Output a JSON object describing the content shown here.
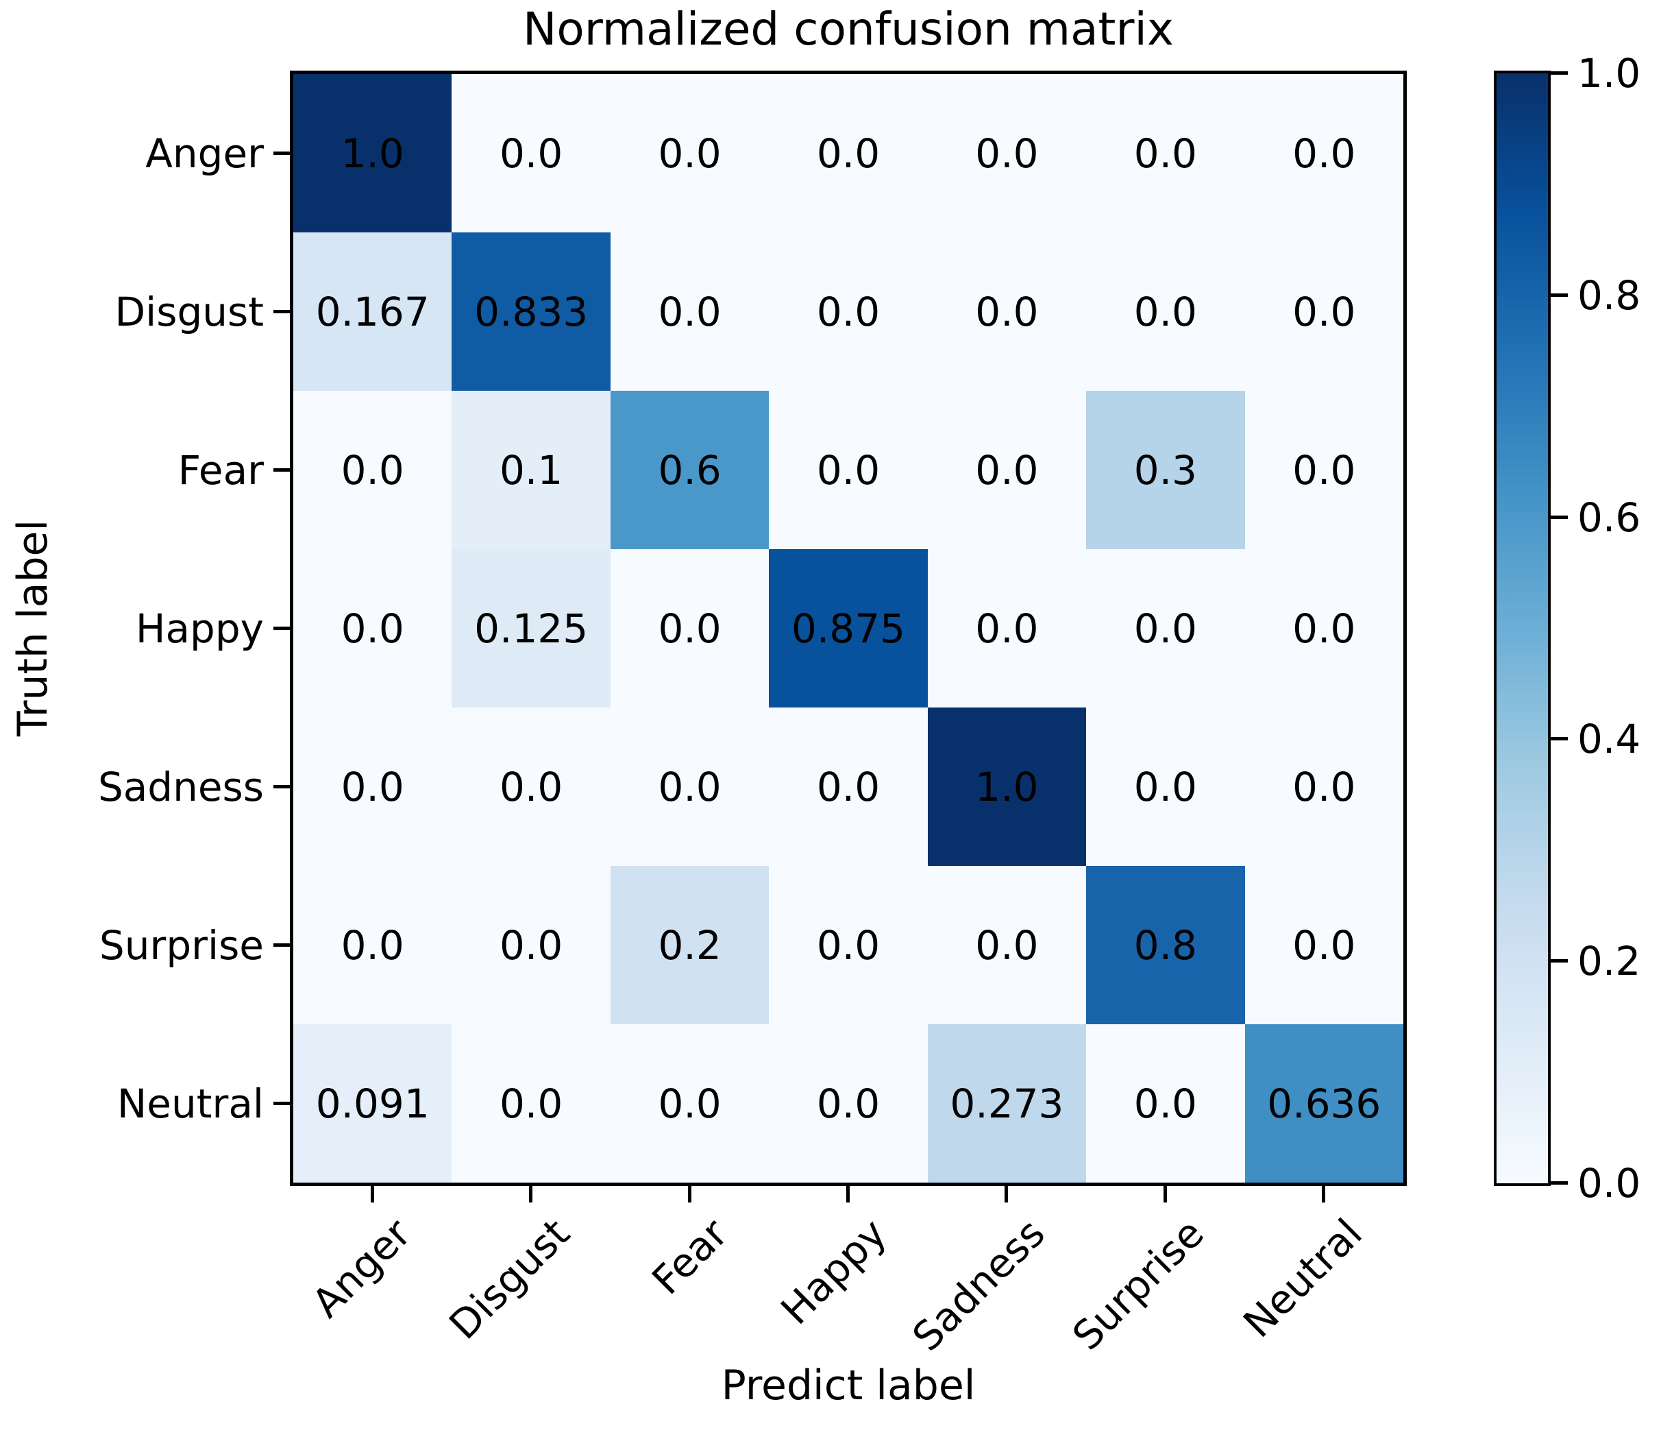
{
  "chart_data": {
    "type": "heatmap",
    "title": "Normalized confusion matrix",
    "xlabel": "Predict label",
    "ylabel": "Truth label",
    "x_categories": [
      "Anger",
      "Disgust",
      "Fear",
      "Happy",
      "Sadness",
      "Surprise",
      "Neutral"
    ],
    "y_categories": [
      "Anger",
      "Disgust",
      "Fear",
      "Happy",
      "Sadness",
      "Surprise",
      "Neutral"
    ],
    "values": [
      [
        1.0,
        0.0,
        0.0,
        0.0,
        0.0,
        0.0,
        0.0
      ],
      [
        0.167,
        0.833,
        0.0,
        0.0,
        0.0,
        0.0,
        0.0
      ],
      [
        0.0,
        0.1,
        0.6,
        0.0,
        0.0,
        0.3,
        0.0
      ],
      [
        0.0,
        0.125,
        0.0,
        0.875,
        0.0,
        0.0,
        0.0
      ],
      [
        0.0,
        0.0,
        0.0,
        0.0,
        1.0,
        0.0,
        0.0
      ],
      [
        0.0,
        0.0,
        0.2,
        0.0,
        0.0,
        0.8,
        0.0
      ],
      [
        0.091,
        0.0,
        0.0,
        0.0,
        0.273,
        0.0,
        0.636
      ]
    ],
    "cell_labels": [
      [
        "1.0",
        "0.0",
        "0.0",
        "0.0",
        "0.0",
        "0.0",
        "0.0"
      ],
      [
        "0.167",
        "0.833",
        "0.0",
        "0.0",
        "0.0",
        "0.0",
        "0.0"
      ],
      [
        "0.0",
        "0.1",
        "0.6",
        "0.0",
        "0.0",
        "0.3",
        "0.0"
      ],
      [
        "0.0",
        "0.125",
        "0.0",
        "0.875",
        "0.0",
        "0.0",
        "0.0"
      ],
      [
        "0.0",
        "0.0",
        "0.0",
        "0.0",
        "1.0",
        "0.0",
        "0.0"
      ],
      [
        "0.0",
        "0.0",
        "0.2",
        "0.0",
        "0.0",
        "0.8",
        "0.0"
      ],
      [
        "0.091",
        "0.0",
        "0.0",
        "0.0",
        "0.273",
        "0.0",
        "0.636"
      ]
    ],
    "colormap": "Blues",
    "colormap_stops": [
      "#f7fbff",
      "#deebf7",
      "#c6dbef",
      "#9ecae1",
      "#6baed6",
      "#4292c6",
      "#2171b5",
      "#08519c",
      "#08306b"
    ],
    "value_text_color": "#000000",
    "vmin": 0.0,
    "vmax": 1.0,
    "grid": false,
    "colorbar": {
      "position": "right",
      "tick_labels": [
        "1.0",
        "0.8",
        "0.6",
        "0.4",
        "0.2",
        "0.0"
      ],
      "tick_values": [
        1.0,
        0.8,
        0.6,
        0.4,
        0.2,
        0.0
      ]
    }
  }
}
